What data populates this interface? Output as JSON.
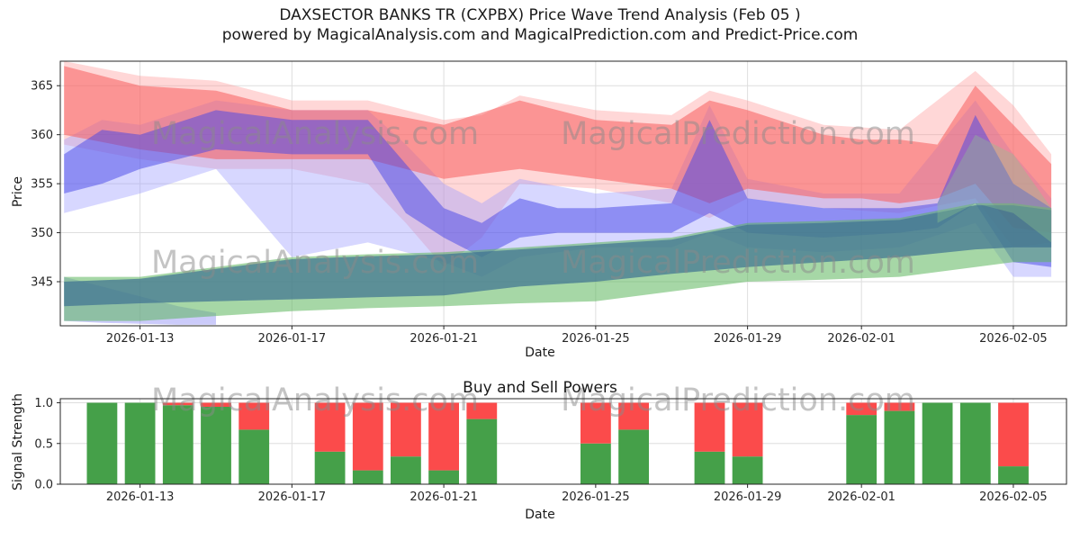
{
  "header": {
    "title_line1": "DAXSECTOR BANKS TR (CXPBX) Price Wave Trend Analysis (Feb 05 )",
    "title_line2": "powered by MagicalAnalysis.com and MagicalPrediction.com and Predict-Price.com"
  },
  "watermarks": {
    "left": "MagicalAnalysis.com",
    "right": "MagicalPrediction.com"
  },
  "chart_data": [
    {
      "type": "area",
      "name": "price-wave-trend",
      "title": "",
      "xlabel": "Date",
      "ylabel": "Price",
      "ylim": [
        340.5,
        367.5
      ],
      "yticks": [
        345,
        350,
        355,
        360,
        365
      ],
      "xlim_days": [
        -0.1,
        26.4
      ],
      "day0_date": "2026-01-11",
      "xticks": [
        {
          "day": 2,
          "label": "2026-01-13"
        },
        {
          "day": 6,
          "label": "2026-01-17"
        },
        {
          "day": 10,
          "label": "2026-01-21"
        },
        {
          "day": 14,
          "label": "2026-01-25"
        },
        {
          "day": 18,
          "label": "2026-01-29"
        },
        {
          "day": 21,
          "label": "2026-02-01"
        },
        {
          "day": 25,
          "label": "2026-02-05"
        }
      ],
      "grid": true,
      "legend": "none",
      "bands": [
        {
          "name": "pink-outer",
          "color": "#ff9595",
          "opacity": 0.38,
          "x": [
            0,
            2,
            4,
            6,
            8,
            9,
            10,
            11,
            12,
            14,
            16,
            17,
            18,
            20,
            22,
            24,
            25,
            26
          ],
          "upper": [
            367.5,
            366,
            365.5,
            363.5,
            363.5,
            362.5,
            361.5,
            362,
            364,
            362.5,
            362,
            364.5,
            363.5,
            361,
            360.5,
            366.5,
            363,
            358
          ],
          "lower": [
            359,
            357.5,
            356.5,
            356.5,
            355,
            351,
            346.5,
            349.5,
            355,
            354.5,
            353,
            351.5,
            353.5,
            352.5,
            352,
            353.5,
            348.5,
            349
          ]
        },
        {
          "name": "light-blue-outer",
          "color": "#9b9bff",
          "opacity": 0.4,
          "x": [
            0,
            1,
            2,
            4,
            6,
            8,
            9,
            10,
            11,
            12,
            14,
            16,
            17,
            18,
            20,
            22,
            24,
            25,
            26
          ],
          "upper": [
            359.5,
            361.5,
            361,
            363.5,
            362.5,
            362.5,
            359,
            355,
            353,
            355.5,
            354,
            354.5,
            363,
            355.5,
            354,
            354,
            363.5,
            358,
            353.5
          ],
          "lower": [
            352,
            353,
            354,
            356.5,
            347.5,
            349,
            348,
            347,
            345.5,
            347.5,
            348.5,
            348.5,
            350,
            348.5,
            348,
            348.5,
            351,
            345.5,
            345.5
          ]
        },
        {
          "name": "red-main",
          "color": "#f85c5c",
          "opacity": 0.55,
          "x": [
            0,
            2,
            4,
            6,
            8,
            10,
            12,
            14,
            16,
            17,
            18,
            20,
            21,
            22,
            23,
            24,
            25,
            26
          ],
          "upper": [
            367,
            365,
            364.5,
            362.5,
            362.5,
            361,
            363.5,
            361.5,
            361,
            363.5,
            362.5,
            360,
            359.5,
            359.5,
            359,
            365,
            361,
            357
          ],
          "lower": [
            360,
            358.5,
            357.5,
            357.5,
            357.5,
            355.5,
            356.5,
            355.5,
            354.5,
            353,
            354.5,
            353.5,
            353.5,
            353,
            353.5,
            355,
            350.5,
            350
          ]
        },
        {
          "name": "blue-main",
          "color": "#4646e8",
          "opacity": 0.5,
          "x": [
            0,
            1,
            2,
            4,
            6,
            8,
            9,
            10,
            11,
            12,
            13,
            14,
            16,
            17,
            18,
            20,
            22,
            23,
            24,
            25,
            26
          ],
          "upper": [
            358,
            360.5,
            360,
            362.5,
            361.5,
            361.5,
            357,
            352.5,
            351,
            353.5,
            352.5,
            352.5,
            353,
            361.5,
            353.5,
            352.5,
            352.5,
            353,
            362,
            355,
            352.5
          ],
          "lower": [
            354,
            355,
            356.5,
            358.5,
            358,
            358,
            352,
            349.5,
            347.5,
            349.5,
            350,
            350,
            350,
            352,
            350,
            349.5,
            350,
            350.5,
            353,
            347,
            346.5
          ]
        },
        {
          "name": "bottom-left-blue",
          "color": "#8c8cf5",
          "opacity": 0.45,
          "x": [
            0,
            1,
            2,
            3,
            4
          ],
          "upper": [
            345.5,
            344.5,
            343.5,
            342.5,
            341.8
          ],
          "lower": [
            341,
            340.8,
            340.7,
            340.6,
            340.6
          ]
        },
        {
          "name": "green-main",
          "color": "#5cb75c",
          "opacity": 0.55,
          "x": [
            0,
            2,
            4,
            6,
            8,
            10,
            12,
            14,
            16,
            18,
            20,
            22,
            24,
            25,
            26
          ],
          "upper": [
            345.5,
            345.5,
            346.5,
            347.5,
            347.8,
            348,
            348.5,
            349,
            349.5,
            351,
            351.2,
            351.5,
            353,
            353,
            352.5
          ],
          "lower": [
            341,
            341,
            341.5,
            342,
            342.3,
            342.5,
            342.8,
            343,
            344,
            345,
            345.2,
            345.5,
            346.5,
            347,
            347
          ]
        },
        {
          "name": "teal-overlay",
          "color": "#3d7191",
          "opacity": 0.7,
          "x": [
            0,
            2,
            4,
            6,
            8,
            10,
            12,
            14,
            16,
            18,
            20,
            22,
            24,
            25,
            26
          ],
          "upper": [
            345,
            345.3,
            346.3,
            347.3,
            347.6,
            347.8,
            348.3,
            348.8,
            349.3,
            350.8,
            351,
            351.3,
            352.8,
            352.8,
            352.3
          ],
          "lower": [
            342.5,
            342.8,
            343,
            343.2,
            343.4,
            343.6,
            344.5,
            345,
            345.8,
            346.5,
            347,
            347.5,
            348.3,
            348.5,
            348.5
          ]
        },
        {
          "name": "green-spike",
          "color": "#8bc98b",
          "opacity": 0.35,
          "x": [
            23,
            24,
            25,
            26
          ],
          "upper": [
            353,
            360,
            358,
            352.5
          ],
          "lower": [
            351,
            353,
            352,
            349
          ]
        }
      ]
    },
    {
      "type": "bar",
      "name": "buy-sell-powers",
      "title": "Buy and Sell Powers",
      "xlabel": "Date",
      "ylabel": "Signal Strength",
      "ylim": [
        0,
        1.05
      ],
      "yticks": [
        {
          "v": 0,
          "label": "0.0"
        },
        {
          "v": 0.5,
          "label": "0.5"
        },
        {
          "v": 1,
          "label": "1.0"
        }
      ],
      "xticks": [
        {
          "day": 2,
          "label": "2026-01-13"
        },
        {
          "day": 6,
          "label": "2026-01-17"
        },
        {
          "day": 10,
          "label": "2026-01-21"
        },
        {
          "day": 14,
          "label": "2026-01-25"
        },
        {
          "day": 18,
          "label": "2026-01-29"
        },
        {
          "day": 21,
          "label": "2026-02-01"
        },
        {
          "day": 25,
          "label": "2026-02-05"
        }
      ],
      "buy_color": "#45a049",
      "sell_color": "#fb4b4b",
      "bars": [
        {
          "date": "2026-01-12",
          "day": 1,
          "buy": 1.0,
          "sell": 0.0
        },
        {
          "date": "2026-01-13",
          "day": 2,
          "buy": 1.0,
          "sell": 0.0
        },
        {
          "date": "2026-01-14",
          "day": 3,
          "buy": 0.97,
          "sell": 0.03
        },
        {
          "date": "2026-01-15",
          "day": 4,
          "buy": 0.95,
          "sell": 0.05
        },
        {
          "date": "2026-01-16",
          "day": 5,
          "buy": 0.67,
          "sell": 0.33
        },
        {
          "date": "2026-01-18",
          "day": 7,
          "buy": 0.4,
          "sell": 0.6
        },
        {
          "date": "2026-01-19",
          "day": 8,
          "buy": 0.17,
          "sell": 0.83
        },
        {
          "date": "2026-01-20",
          "day": 9,
          "buy": 0.34,
          "sell": 0.66
        },
        {
          "date": "2026-01-21",
          "day": 10,
          "buy": 0.17,
          "sell": 0.83
        },
        {
          "date": "2026-01-22",
          "day": 11,
          "buy": 0.8,
          "sell": 0.2
        },
        {
          "date": "2026-01-25",
          "day": 14,
          "buy": 0.5,
          "sell": 0.5
        },
        {
          "date": "2026-01-26",
          "day": 15,
          "buy": 0.67,
          "sell": 0.33
        },
        {
          "date": "2026-01-28",
          "day": 17,
          "buy": 0.4,
          "sell": 0.6
        },
        {
          "date": "2026-01-29",
          "day": 18,
          "buy": 0.34,
          "sell": 0.66
        },
        {
          "date": "2026-02-01",
          "day": 21,
          "buy": 0.85,
          "sell": 0.15
        },
        {
          "date": "2026-02-02",
          "day": 22,
          "buy": 0.9,
          "sell": 0.1
        },
        {
          "date": "2026-02-03",
          "day": 23,
          "buy": 1.0,
          "sell": 0.0
        },
        {
          "date": "2026-02-04",
          "day": 24,
          "buy": 1.0,
          "sell": 0.0
        },
        {
          "date": "2026-02-05",
          "day": 25,
          "buy": 0.22,
          "sell": 0.78
        }
      ]
    }
  ]
}
